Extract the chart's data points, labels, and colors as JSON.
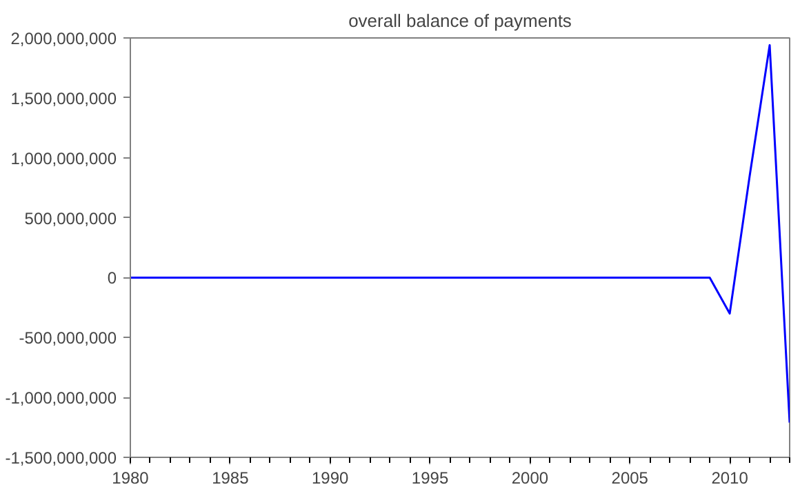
{
  "chart_data": {
    "type": "line",
    "title": "overall balance of payments",
    "x": [
      1980,
      1981,
      1982,
      1983,
      1984,
      1985,
      1986,
      1987,
      1988,
      1989,
      1990,
      1991,
      1992,
      1993,
      1994,
      1995,
      1996,
      1997,
      1998,
      1999,
      2000,
      2001,
      2002,
      2003,
      2004,
      2005,
      2006,
      2007,
      2008,
      2009,
      2010,
      2011,
      2012,
      2013
    ],
    "series": [
      {
        "color": "#0000ff",
        "values": [
          0,
          0,
          0,
          0,
          0,
          0,
          0,
          0,
          0,
          0,
          0,
          0,
          0,
          0,
          0,
          0,
          0,
          0,
          0,
          0,
          0,
          0,
          0,
          0,
          0,
          0,
          0,
          0,
          0,
          0,
          -300000000,
          850000000,
          1940000000,
          -1210000000
        ]
      }
    ],
    "xlim": [
      1980,
      2013
    ],
    "xticks": [
      1980,
      1985,
      1990,
      1995,
      2000,
      2005,
      2010
    ],
    "ylim": [
      -1500000000,
      2000000000
    ],
    "yticks": [
      {
        "value": -1500000000,
        "label": "-1,500,000,000"
      },
      {
        "value": -1000000000,
        "label": "-1,000,000,000"
      },
      {
        "value": -500000000,
        "label": "-500,000,000"
      },
      0,
      {
        "value": 500000000,
        "label": "500,000,000"
      },
      {
        "value": 1000000000,
        "label": "1,000,000,000"
      },
      {
        "value": 1500000000,
        "label": "1,500,000,000"
      },
      {
        "value": 2000000000,
        "label": "2,000,000,000"
      }
    ],
    "grid": false,
    "line_style": "solid"
  }
}
